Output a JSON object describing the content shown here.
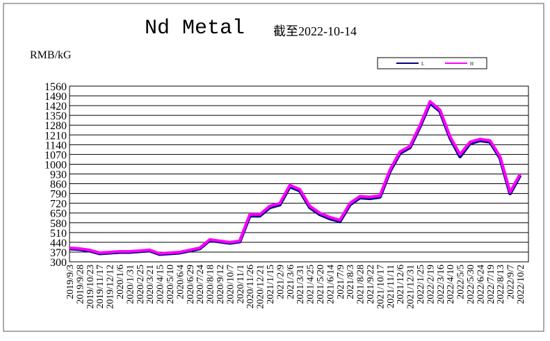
{
  "chart_data": {
    "type": "line",
    "title": "Nd Metal",
    "subtitle": "截至2022-10-14",
    "y_label": "RMB/kG",
    "categories": [
      "2019/9/3",
      "2019/9/28",
      "2019/10/23",
      "2019/11/17",
      "2019/12/12",
      "2020/1/6",
      "2020/1/31",
      "2020/2/25",
      "2020/3/21",
      "2020/4/15",
      "2020/5/10",
      "2020/6/4",
      "2020/6/29",
      "2020/7/24",
      "2020/8/18",
      "2020/9/12",
      "2020/10/7",
      "2020/11/1",
      "2020/11/26",
      "2020/12/21",
      "2021/1/15",
      "2021/2/9",
      "2021/3/6",
      "2021/3/31",
      "2021/4/25",
      "2021/5/20",
      "2021/6/14",
      "2021/7/9",
      "2021/8/3",
      "2021/8/28",
      "2021/9/22",
      "2021/10/17",
      "2021/11/11",
      "2021/12/6",
      "2021/12/31",
      "2022/1/25",
      "2022/2/19",
      "2022/3/16",
      "2022/4/10",
      "2022/5/5",
      "2022/5/30",
      "2022/6/24",
      "2022/7/19",
      "2022/8/13",
      "2022/9/7",
      "2022/10/2"
    ],
    "series": [
      {
        "name": "L",
        "color": "#000080",
        "values": [
          395,
          390,
          380,
          360,
          365,
          370,
          370,
          375,
          380,
          355,
          360,
          365,
          380,
          395,
          455,
          445,
          435,
          445,
          630,
          630,
          690,
          710,
          840,
          810,
          690,
          640,
          610,
          590,
          710,
          760,
          755,
          765,
          950,
          1080,
          1120,
          1270,
          1440,
          1380,
          1190,
          1055,
          1150,
          1170,
          1160,
          1045,
          790,
          920
        ]
      },
      {
        "name": "H",
        "color": "#ff00ff",
        "values": [
          400,
          395,
          385,
          365,
          370,
          375,
          375,
          380,
          385,
          360,
          365,
          370,
          385,
          400,
          460,
          450,
          440,
          450,
          640,
          640,
          700,
          720,
          850,
          820,
          700,
          650,
          620,
          600,
          720,
          770,
          765,
          775,
          960,
          1090,
          1130,
          1280,
          1450,
          1390,
          1200,
          1070,
          1160,
          1180,
          1170,
          1055,
          800,
          930
        ]
      }
    ],
    "ylim": [
      300,
      1560
    ],
    "yticks": [
      300,
      370,
      440,
      510,
      580,
      650,
      720,
      790,
      860,
      930,
      1000,
      1070,
      1140,
      1210,
      1280,
      1350,
      1420,
      1490,
      1560
    ],
    "grid": true,
    "legend": "top-right"
  }
}
